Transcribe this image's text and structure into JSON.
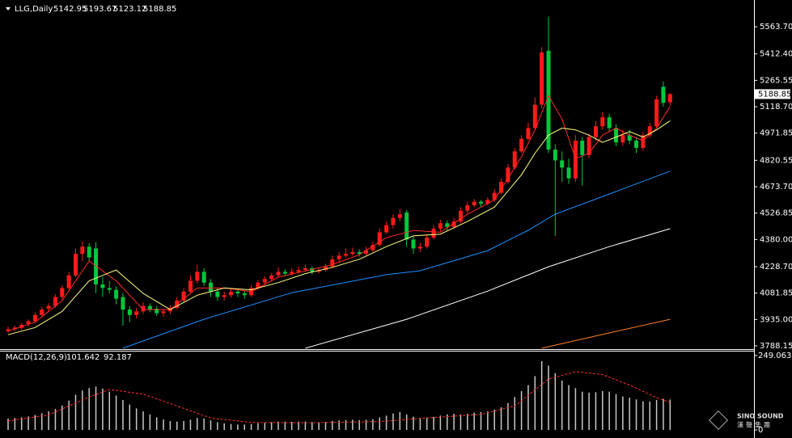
{
  "chart_data": [
    {
      "type": "candlestick",
      "title": "LLG,Daily",
      "up_color": "#ff1a1a",
      "down_color": "#00c83c",
      "ohlc": [
        [
          3870,
          3895,
          3860,
          3880
        ],
        [
          3882,
          3900,
          3870,
          3890
        ],
        [
          3888,
          3915,
          3878,
          3905
        ],
        [
          3910,
          3935,
          3895,
          3925
        ],
        [
          3925,
          3975,
          3915,
          3960
        ],
        [
          3960,
          4005,
          3950,
          3990
        ],
        [
          3995,
          4025,
          3975,
          4010
        ],
        [
          4010,
          4075,
          4000,
          4060
        ],
        [
          4060,
          4125,
          4045,
          4110
        ],
        [
          4110,
          4200,
          4100,
          4180
        ],
        [
          4180,
          4330,
          4170,
          4300
        ],
        [
          4300,
          4370,
          4260,
          4340
        ],
        [
          4340,
          4360,
          4260,
          4280
        ],
        [
          4330,
          4365,
          4080,
          4130
        ],
        [
          4130,
          4170,
          4060,
          4110
        ],
        [
          4110,
          4150,
          4080,
          4100
        ],
        [
          4100,
          4120,
          4020,
          4050
        ],
        [
          4060,
          4080,
          3900,
          3990
        ],
        [
          3990,
          4010,
          3920,
          3960
        ],
        [
          3960,
          4000,
          3940,
          3980
        ],
        [
          3980,
          4030,
          3965,
          4010
        ],
        [
          4010,
          4025,
          3975,
          3990
        ],
        [
          3995,
          4010,
          3955,
          3970
        ],
        [
          3970,
          3995,
          3950,
          3980
        ],
        [
          3980,
          4015,
          3965,
          4000
        ],
        [
          4000,
          4060,
          3990,
          4040
        ],
        [
          4040,
          4110,
          4030,
          4090
        ],
        [
          4090,
          4180,
          4080,
          4150
        ],
        [
          4150,
          4240,
          4135,
          4200
        ],
        [
          4200,
          4220,
          4120,
          4140
        ],
        [
          4140,
          4160,
          4060,
          4090
        ],
        [
          4090,
          4110,
          4040,
          4060
        ],
        [
          4060,
          4090,
          4040,
          4070
        ],
        [
          4070,
          4110,
          4055,
          4090
        ],
        [
          4090,
          4105,
          4060,
          4080
        ],
        [
          4080,
          4095,
          4050,
          4070
        ],
        [
          4070,
          4125,
          4060,
          4110
        ],
        [
          4110,
          4155,
          4100,
          4140
        ],
        [
          4140,
          4175,
          4125,
          4160
        ],
        [
          4160,
          4195,
          4150,
          4180
        ],
        [
          4180,
          4225,
          4170,
          4200
        ],
        [
          4200,
          4215,
          4175,
          4190
        ],
        [
          4190,
          4220,
          4180,
          4200
        ],
        [
          4200,
          4230,
          4190,
          4210
        ],
        [
          4210,
          4240,
          4200,
          4220
        ],
        [
          4220,
          4230,
          4185,
          4200
        ],
        [
          4200,
          4225,
          4190,
          4210
        ],
        [
          4210,
          4245,
          4200,
          4230
        ],
        [
          4230,
          4290,
          4220,
          4270
        ],
        [
          4270,
          4310,
          4255,
          4290
        ],
        [
          4290,
          4330,
          4280,
          4300
        ],
        [
          4300,
          4335,
          4290,
          4310
        ],
        [
          4310,
          4325,
          4285,
          4300
        ],
        [
          4300,
          4340,
          4290,
          4320
        ],
        [
          4320,
          4370,
          4310,
          4350
        ],
        [
          4350,
          4440,
          4340,
          4420
        ],
        [
          4420,
          4480,
          4410,
          4460
        ],
        [
          4460,
          4520,
          4440,
          4500
        ],
        [
          4500,
          4550,
          4480,
          4520
        ],
        [
          4530,
          4545,
          4340,
          4380
        ],
        [
          4380,
          4400,
          4300,
          4330
        ],
        [
          4330,
          4360,
          4310,
          4340
        ],
        [
          4340,
          4410,
          4330,
          4390
        ],
        [
          4390,
          4460,
          4380,
          4440
        ],
        [
          4440,
          4490,
          4425,
          4470
        ],
        [
          4470,
          4485,
          4430,
          4450
        ],
        [
          4450,
          4500,
          4440,
          4480
        ],
        [
          4480,
          4560,
          4470,
          4540
        ],
        [
          4540,
          4590,
          4525,
          4570
        ],
        [
          4570,
          4605,
          4560,
          4590
        ],
        [
          4590,
          4600,
          4560,
          4580
        ],
        [
          4580,
          4615,
          4570,
          4600
        ],
        [
          4600,
          4660,
          4590,
          4640
        ],
        [
          4640,
          4720,
          4630,
          4700
        ],
        [
          4700,
          4800,
          4690,
          4780
        ],
        [
          4780,
          4890,
          4770,
          4870
        ],
        [
          4870,
          4960,
          4860,
          4940
        ],
        [
          4940,
          5030,
          4930,
          5000
        ],
        [
          5000,
          5170,
          4990,
          5130
        ],
        [
          5130,
          5450,
          5110,
          5420
        ],
        [
          5430,
          5620,
          4860,
          4880
        ],
        [
          4880,
          4910,
          4400,
          4820
        ],
        [
          4820,
          4870,
          4700,
          4780
        ],
        [
          4780,
          4830,
          4690,
          4720
        ],
        [
          4720,
          4960,
          4700,
          4930
        ],
        [
          4930,
          4950,
          4680,
          4850
        ],
        [
          4850,
          4970,
          4830,
          4950
        ],
        [
          4950,
          5040,
          4930,
          5010
        ],
        [
          5010,
          5090,
          4990,
          5060
        ],
        [
          5060,
          5080,
          4980,
          5000
        ],
        [
          5000,
          5020,
          4900,
          4920
        ],
        [
          4920,
          4990,
          4900,
          4960
        ],
        [
          4960,
          4990,
          4910,
          4930
        ],
        [
          4930,
          4950,
          4860,
          4890
        ],
        [
          4890,
          4980,
          4875,
          4960
        ],
        [
          4960,
          5030,
          4945,
          5010
        ],
        [
          5010,
          5180,
          5000,
          5160
        ],
        [
          5230,
          5260,
          5120,
          5140
        ],
        [
          5142.95,
          5193.67,
          5123.12,
          5188.85
        ]
      ],
      "lines": [
        {
          "color": "#ff2a2a",
          "x": [
            0,
            4,
            8,
            12,
            16,
            20,
            24,
            28,
            32,
            36,
            40,
            44,
            48,
            52,
            56,
            60,
            64,
            68,
            72,
            76,
            78,
            80,
            82,
            84,
            86,
            88,
            90,
            92,
            94,
            96,
            98
          ],
          "values": [
            3870,
            3920,
            4040,
            4260,
            4150,
            3990,
            3990,
            4110,
            4110,
            4090,
            4170,
            4205,
            4240,
            4295,
            4390,
            4430,
            4420,
            4520,
            4600,
            4840,
            4990,
            5180,
            5050,
            4830,
            4860,
            4960,
            5000,
            4960,
            4930,
            5000,
            5120
          ]
        },
        {
          "color": "#ffff80",
          "x": [
            0,
            4,
            8,
            12,
            16,
            20,
            24,
            28,
            32,
            36,
            40,
            44,
            48,
            52,
            56,
            60,
            64,
            68,
            72,
            76,
            78,
            80,
            82,
            84,
            86,
            88,
            90,
            92,
            94,
            96,
            98
          ],
          "values": [
            3850,
            3890,
            3980,
            4150,
            4210,
            4080,
            3990,
            4070,
            4110,
            4100,
            4140,
            4190,
            4225,
            4270,
            4340,
            4400,
            4410,
            4480,
            4560,
            4740,
            4860,
            4960,
            5000,
            4990,
            4960,
            4920,
            4950,
            4980,
            4950,
            4990,
            5040
          ]
        },
        {
          "color": "#1e90ff",
          "x": [
            17,
            29,
            42,
            56,
            61,
            71,
            77,
            81,
            89,
            98
          ],
          "values": [
            3775,
            3936,
            4084,
            4184,
            4206,
            4318,
            4431,
            4521,
            4633,
            4760
          ]
        },
        {
          "color": "#ffffff",
          "x": [
            44,
            59,
            71,
            80,
            89,
            98
          ],
          "values": [
            3775,
            3936,
            4093,
            4228,
            4340,
            4440
          ]
        },
        {
          "color": "#ff7f27",
          "x": [
            79,
            89,
            98
          ],
          "values": [
            3775,
            3860,
            3936
          ]
        }
      ],
      "ylim": [
        3770,
        5690
      ],
      "yticks": [
        {
          "value": 5563.7,
          "label": "5563.70"
        },
        {
          "value": 5412.4,
          "label": "5412.40"
        },
        {
          "value": 5265.55,
          "label": "5265.55"
        },
        {
          "value": 5118.7,
          "label": "5118.70"
        },
        {
          "value": 4971.85,
          "label": "4971.85"
        },
        {
          "value": 4820.55,
          "label": "4820.55"
        },
        {
          "value": 4673.7,
          "label": "4673.70"
        },
        {
          "value": 4526.85,
          "label": "4526.85"
        },
        {
          "value": 4380,
          "label": "4380.00"
        },
        {
          "value": 4228.7,
          "label": "4228.70"
        },
        {
          "value": 4081.85,
          "label": "4081.85"
        },
        {
          "value": 3935,
          "label": "3935.00"
        },
        {
          "value": 3788.15,
          "label": "3788.15"
        }
      ]
    },
    {
      "type": "bar",
      "title": "MACD(12,26,9)",
      "color": "#c8c8c8",
      "values": [
        38,
        40,
        42,
        45,
        50,
        56,
        62,
        70,
        82,
        98,
        118,
        132,
        140,
        145,
        138,
        128,
        115,
        100,
        85,
        72,
        62,
        52,
        42,
        35,
        30,
        28,
        30,
        34,
        40,
        38,
        32,
        26,
        22,
        20,
        18,
        18,
        20,
        22,
        24,
        26,
        28,
        28,
        27,
        28,
        28,
        26,
        26,
        27,
        30,
        32,
        33,
        34,
        33,
        34,
        36,
        42,
        48,
        55,
        60,
        52,
        44,
        40,
        40,
        44,
        48,
        52,
        54,
        52,
        54,
        58,
        60,
        62,
        68,
        76,
        90,
        110,
        130,
        150,
        180,
        230,
        215,
        190,
        165,
        150,
        140,
        128,
        125,
        126,
        130,
        128,
        120,
        112,
        108,
        102,
        96,
        95,
        100,
        104,
        101.642
      ],
      "signal": {
        "color": "#ff3030",
        "x": [
          0,
          6,
          12,
          15,
          20,
          25,
          30,
          36,
          45,
          55,
          62,
          70,
          75,
          80,
          84,
          88,
          92,
          96,
          98
        ],
        "values": [
          30,
          50,
          110,
          135,
          120,
          80,
          40,
          25,
          24,
          28,
          40,
          52,
          80,
          170,
          195,
          185,
          150,
          108,
          92.187
        ]
      },
      "ylim": [
        -27,
        265
      ],
      "yticks": [
        249.063,
        0
      ]
    }
  ],
  "watermark": {
    "en": "SINO SOUND",
    "zh": "漢聲集團"
  }
}
